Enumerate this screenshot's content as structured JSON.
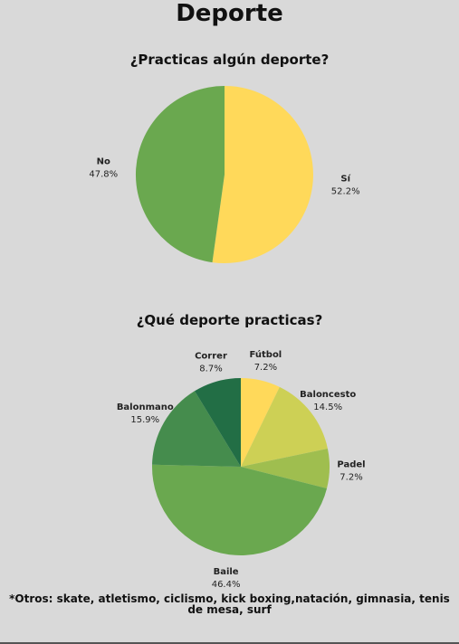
{
  "page": {
    "title": "Deporte",
    "footnote": "*Otros: skate, atletismo, ciclismo, kick boxing,natación, gimnasia, tenis de mesa, surf"
  },
  "chart_data": [
    {
      "type": "pie",
      "title": "¿Practicas algún deporte?",
      "slices": [
        {
          "label": "Sí",
          "value": 52.2,
          "value_label": "52.2%",
          "color": "#ffd95a"
        },
        {
          "label": "No",
          "value": 47.8,
          "value_label": "47.8%",
          "color": "#6aa84f"
        }
      ]
    },
    {
      "type": "pie",
      "title": "¿Qué deporte practicas?",
      "slices": [
        {
          "label": "Fútbol",
          "value": 7.2,
          "value_label": "7.2%",
          "color": "#ffd95a"
        },
        {
          "label": "Baloncesto",
          "value": 14.5,
          "value_label": "14.5%",
          "color": "#cdd055"
        },
        {
          "label": "Padel",
          "value": 7.2,
          "value_label": "7.2%",
          "color": "#9fbe4f"
        },
        {
          "label": "Baile",
          "value": 46.4,
          "value_label": "46.4%",
          "color": "#6aa84f"
        },
        {
          "label": "Balonmano",
          "value": 15.9,
          "value_label": "15.9%",
          "color": "#458c4d"
        },
        {
          "label": "Correr",
          "value": 8.7,
          "value_label": "8.7%",
          "color": "#226e45"
        }
      ]
    }
  ]
}
